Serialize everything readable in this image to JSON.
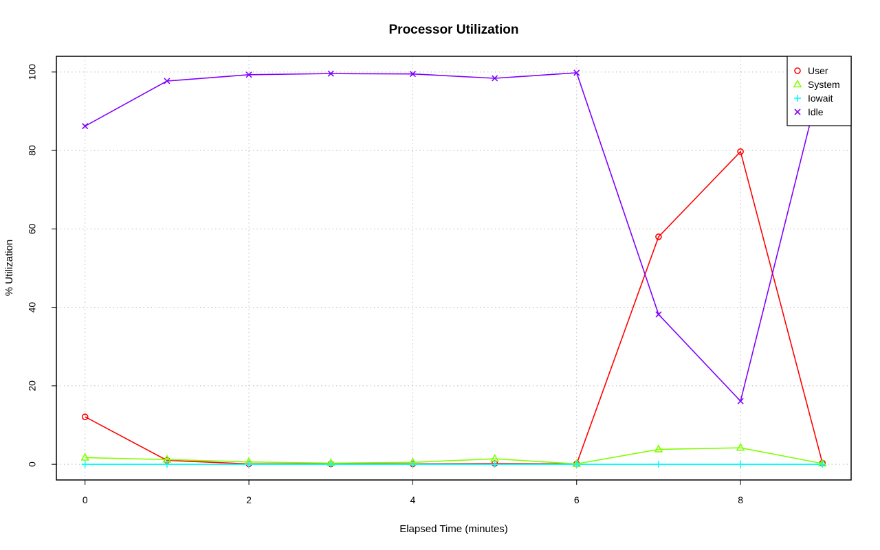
{
  "chart_data": {
    "type": "line",
    "title": "Processor Utilization",
    "xlabel": "Elapsed Time (minutes)",
    "ylabel": "% Utilization",
    "xlim": [
      -0.35,
      9.35
    ],
    "ylim": [
      -4,
      104
    ],
    "xticks": [
      "0",
      "2",
      "4",
      "6",
      "8"
    ],
    "yticks": [
      "0",
      "20",
      "40",
      "60",
      "80",
      "100"
    ],
    "grid": true,
    "legend_position": "top-right",
    "x": [
      0,
      1,
      2,
      3,
      4,
      5,
      6,
      7,
      8,
      9
    ],
    "series": [
      {
        "name": "User",
        "color": "#FF0000",
        "marker": "circle",
        "values": [
          12.1,
          1.0,
          0.1,
          0.1,
          0.1,
          0.2,
          0.1,
          58.0,
          79.7,
          0.3
        ]
      },
      {
        "name": "System",
        "color": "#80FF00",
        "marker": "triangle",
        "values": [
          1.7,
          1.2,
          0.6,
          0.3,
          0.5,
          1.4,
          0.1,
          3.8,
          4.2,
          0.2
        ]
      },
      {
        "name": "Iowait",
        "color": "#00FFFF",
        "marker": "plus",
        "values": [
          0,
          0,
          0,
          0,
          0,
          0,
          0,
          0,
          0,
          0
        ]
      },
      {
        "name": "Idle",
        "color": "#8000FF",
        "marker": "cross",
        "values": [
          86.2,
          97.7,
          99.3,
          99.6,
          99.5,
          98.4,
          99.8,
          38.2,
          16.1,
          99.6
        ]
      }
    ]
  }
}
